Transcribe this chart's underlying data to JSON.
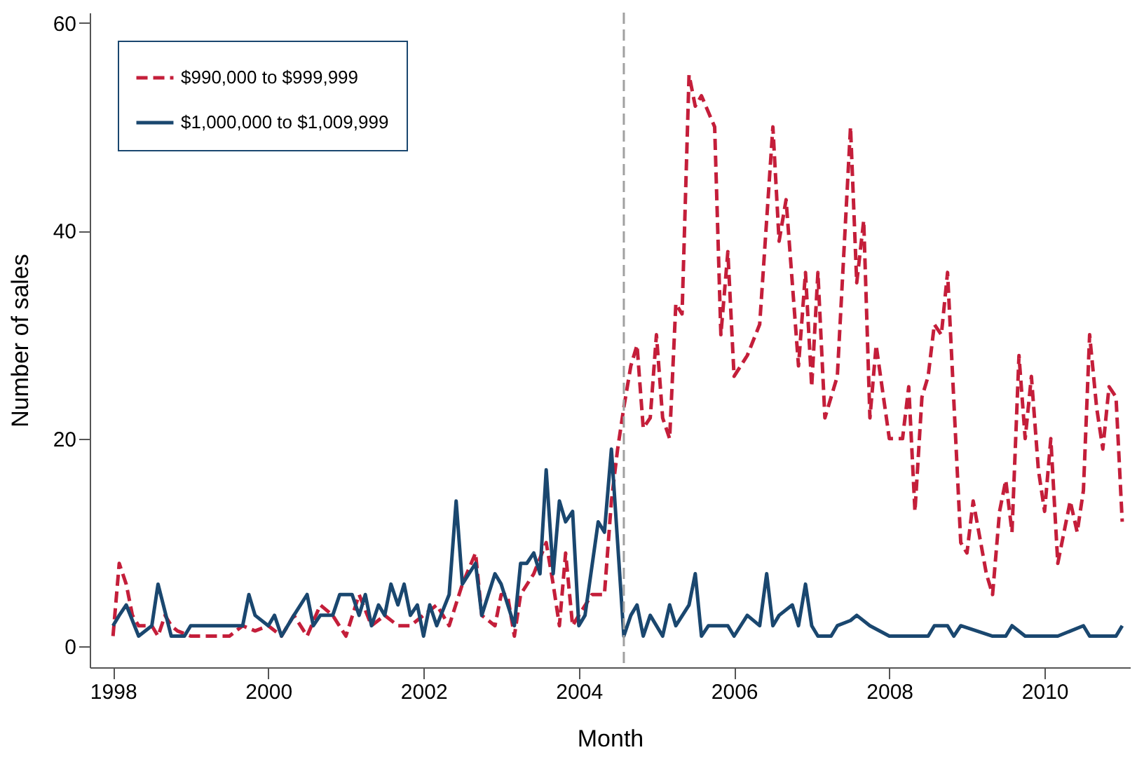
{
  "chart_data": {
    "type": "line",
    "xlabel": "Month",
    "ylabel": "Number of sales",
    "xlim": [
      1997.7,
      2011.1
    ],
    "ylim": [
      -2,
      61
    ],
    "xticks": [
      1998,
      2000,
      2002,
      2004,
      2006,
      2008,
      2010
    ],
    "yticks": [
      0,
      20,
      40,
      60
    ],
    "grid": false,
    "legend": "top left",
    "marker": "none",
    "ref_lines": [
      {
        "axis": "x",
        "value": 2004.58,
        "color": "#a0a0a0",
        "line_style": "dashed"
      }
    ],
    "series": [
      {
        "name": "$990,000 to $999,999",
        "color": "#c41e3a",
        "line_style": "dashed",
        "x": [
          1998,
          1998.08,
          1998.17,
          1998.25,
          1998.33,
          1998.5,
          1998.58,
          1998.67,
          1998.75,
          1998.83,
          1999,
          1999.5,
          1999.67,
          1999.83,
          2000,
          2000.17,
          2000.33,
          2000.5,
          2000.67,
          2000.83,
          2001,
          2001.17,
          2001.33,
          2001.5,
          2001.67,
          2001.83,
          2002,
          2002.17,
          2002.33,
          2002.5,
          2002.67,
          2002.75,
          2002.92,
          2003,
          2003.08,
          2003.17,
          2003.25,
          2003.42,
          2003.58,
          2003.67,
          2003.75,
          2003.83,
          2003.92,
          2004,
          2004.17,
          2004.33,
          2004.42,
          2004.5,
          2004.58,
          2004.67,
          2004.75,
          2004.83,
          2004.92,
          2005,
          2005.08,
          2005.17,
          2005.25,
          2005.33,
          2005.42,
          2005.5,
          2005.58,
          2005.75,
          2005.83,
          2005.92,
          2006,
          2006.17,
          2006.33,
          2006.5,
          2006.58,
          2006.67,
          2006.83,
          2006.92,
          2007,
          2007.08,
          2007.17,
          2007.33,
          2007.5,
          2007.58,
          2007.67,
          2007.75,
          2007.83,
          2008,
          2008.17,
          2008.25,
          2008.33,
          2008.42,
          2008.5,
          2008.58,
          2008.67,
          2008.75,
          2008.92,
          2009,
          2009.08,
          2009.25,
          2009.33,
          2009.42,
          2009.5,
          2009.58,
          2009.67,
          2009.75,
          2009.83,
          2009.92,
          2010,
          2010.08,
          2010.17,
          2010.25,
          2010.33,
          2010.42,
          2010.5,
          2010.58,
          2010.67,
          2010.75,
          2010.83,
          2010.92,
          2011
        ],
        "values": [
          1,
          8,
          6,
          3,
          2,
          2,
          1,
          3,
          2,
          1.5,
          1,
          1,
          2,
          1.5,
          2,
          1,
          3,
          1,
          4,
          3,
          1,
          5,
          2,
          3,
          2,
          2,
          3,
          4,
          2,
          6,
          9,
          3,
          2,
          5,
          5,
          1,
          5,
          7,
          10,
          6,
          2,
          9,
          2,
          3,
          5,
          5,
          14,
          19,
          23,
          27,
          29,
          21,
          22,
          30,
          22,
          20,
          33,
          32,
          55,
          52,
          53,
          50,
          30,
          38,
          26,
          28,
          31,
          50,
          39,
          43,
          27,
          36,
          25,
          36,
          22,
          26,
          50,
          35,
          41,
          22,
          29,
          20,
          20,
          25,
          13,
          24,
          26,
          31,
          30,
          36,
          10,
          9,
          14,
          7,
          5,
          13,
          16,
          11,
          28,
          20,
          26,
          17,
          13,
          20,
          8,
          11,
          14,
          11,
          15,
          30,
          23,
          19,
          25,
          24,
          12
        ]
      },
      {
        "name": "$1,000,000 to $1,009,999",
        "color": "#1a476f",
        "line_style": "solid",
        "x": [
          1998,
          1998.08,
          1998.17,
          1998.33,
          1998.5,
          1998.58,
          1998.75,
          1998.92,
          1999,
          1999.67,
          1999.75,
          1999.83,
          2000,
          2000.08,
          2000.17,
          2000.33,
          2000.5,
          2000.58,
          2000.67,
          2000.83,
          2000.92,
          2001.08,
          2001.17,
          2001.25,
          2001.33,
          2001.42,
          2001.5,
          2001.58,
          2001.67,
          2001.75,
          2001.83,
          2001.92,
          2002,
          2002.08,
          2002.17,
          2002.33,
          2002.42,
          2002.5,
          2002.67,
          2002.75,
          2002.92,
          2003,
          2003.17,
          2003.25,
          2003.33,
          2003.42,
          2003.5,
          2003.58,
          2003.67,
          2003.75,
          2003.83,
          2003.92,
          2004,
          2004.08,
          2004.25,
          2004.33,
          2004.42,
          2004.5,
          2004.58,
          2004.67,
          2004.75,
          2004.83,
          2004.92,
          2005.08,
          2005.17,
          2005.25,
          2005.42,
          2005.5,
          2005.58,
          2005.67,
          2005.92,
          2006,
          2006.17,
          2006.33,
          2006.42,
          2006.5,
          2006.58,
          2006.75,
          2006.83,
          2006.92,
          2007,
          2007.08,
          2007.25,
          2007.33,
          2007.5,
          2007.58,
          2007.75,
          2008,
          2008.5,
          2008.58,
          2008.75,
          2008.83,
          2008.92,
          2009.33,
          2009.5,
          2009.58,
          2009.75,
          2010.17,
          2010.5,
          2010.58,
          2010.92,
          2011
        ],
        "values": [
          2,
          3,
          4,
          1,
          2,
          6,
          1,
          1,
          2,
          2,
          5,
          3,
          2,
          3,
          1,
          3,
          5,
          2,
          3,
          3,
          5,
          5,
          3,
          5,
          2,
          4,
          3,
          6,
          4,
          6,
          3,
          4,
          1,
          4,
          2,
          5,
          14,
          6,
          8,
          3,
          7,
          6,
          2,
          8,
          8,
          9,
          7,
          17,
          7,
          14,
          12,
          13,
          2,
          3,
          12,
          11,
          19,
          10,
          1,
          3,
          4,
          1,
          3,
          1,
          4,
          2,
          4,
          7,
          1,
          2,
          2,
          1,
          3,
          2,
          7,
          2,
          3,
          4,
          2,
          6,
          2,
          1,
          1,
          2,
          2.5,
          3,
          2,
          1,
          1,
          2,
          2,
          1,
          2,
          1,
          1,
          2,
          1,
          1,
          2,
          1,
          1,
          2
        ]
      }
    ]
  }
}
